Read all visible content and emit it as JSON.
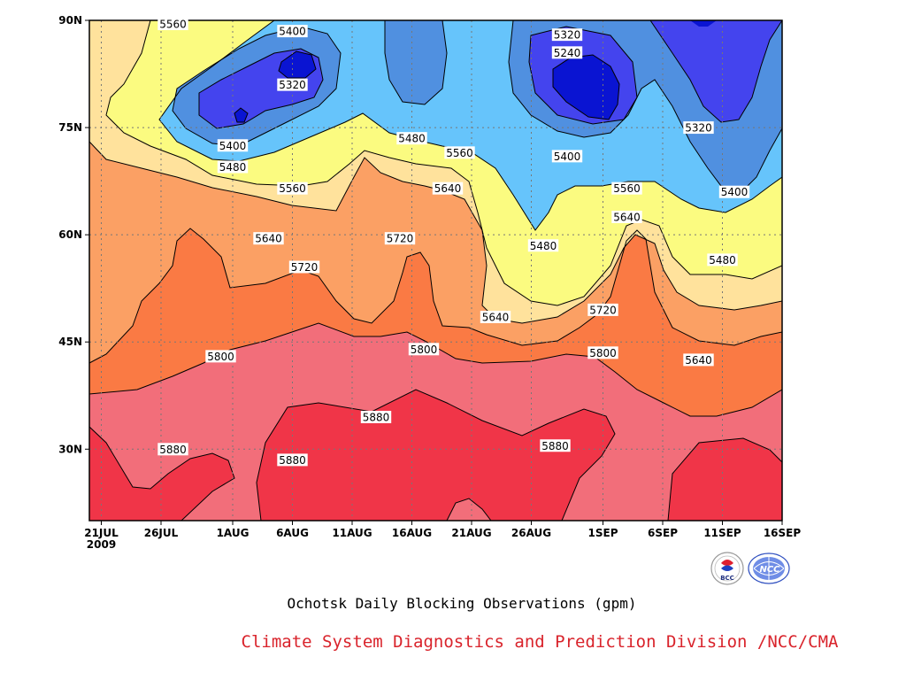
{
  "chart_data": {
    "type": "heatmap",
    "title": "Ochotsk Daily Blocking Observations (gpm)",
    "credit": "Climate System Diagnostics and Prediction Division /NCC/CMA",
    "x_ticks": [
      {
        "label": "21JUL",
        "sublabel": "2009",
        "date": "2009-07-21"
      },
      {
        "label": "26JUL",
        "date": "2009-07-26"
      },
      {
        "label": "1AUG",
        "date": "2009-08-01"
      },
      {
        "label": "6AUG",
        "date": "2009-08-06"
      },
      {
        "label": "11AUG",
        "date": "2009-08-11"
      },
      {
        "label": "16AUG",
        "date": "2009-08-16"
      },
      {
        "label": "21AUG",
        "date": "2009-08-21"
      },
      {
        "label": "26AUG",
        "date": "2009-08-26"
      },
      {
        "label": "1SEP",
        "date": "2009-09-01"
      },
      {
        "label": "6SEP",
        "date": "2009-09-06"
      },
      {
        "label": "11SEP",
        "date": "2009-09-11"
      },
      {
        "label": "16SEP",
        "date": "2009-09-16"
      }
    ],
    "y_ticks": [
      "90N",
      "75N",
      "60N",
      "45N",
      "30N"
    ],
    "xlim": [
      "2009-07-20",
      "2009-09-16"
    ],
    "ylim": [
      20,
      90
    ],
    "grid": true,
    "contour_levels": [
      5240,
      5320,
      5400,
      5480,
      5560,
      5640,
      5720,
      5800,
      5880
    ],
    "level_colors": {
      "5240": "#0a14d2",
      "5320": "#4444ee",
      "5400": "#5090e0",
      "5480": "#66c4fb",
      "5560": "#fbfb80",
      "5640": "#ffe29c",
      "5720": "#fba064",
      "5800": "#fa7a44",
      "5880": "#f26e7a",
      "above": "#f03548"
    },
    "contour_labels": [
      {
        "value": "5560",
        "date": "2009-07-27",
        "lat": 89.5
      },
      {
        "value": "5400",
        "date": "2009-08-06",
        "lat": 88.5
      },
      {
        "value": "5320",
        "date": "2009-08-06",
        "lat": 81.0
      },
      {
        "value": "5400",
        "date": "2009-08-01",
        "lat": 72.5
      },
      {
        "value": "5480",
        "date": "2009-08-01",
        "lat": 69.5
      },
      {
        "value": "5560",
        "date": "2009-08-06",
        "lat": 66.5
      },
      {
        "value": "5640",
        "date": "2009-08-04",
        "lat": 59.5
      },
      {
        "value": "5720",
        "date": "2009-08-07",
        "lat": 55.5
      },
      {
        "value": "5720",
        "date": "2009-08-15",
        "lat": 59.5
      },
      {
        "value": "5480",
        "date": "2009-08-16",
        "lat": 73.5
      },
      {
        "value": "5560",
        "date": "2009-08-20",
        "lat": 71.5
      },
      {
        "value": "5640",
        "date": "2009-08-19",
        "lat": 66.5
      },
      {
        "value": "5640",
        "date": "2009-08-23",
        "lat": 48.5
      },
      {
        "value": "5320",
        "date": "2009-08-29",
        "lat": 88.0
      },
      {
        "value": "5240",
        "date": "2009-08-29",
        "lat": 85.5
      },
      {
        "value": "5400",
        "date": "2009-08-29",
        "lat": 71.0
      },
      {
        "value": "5480",
        "date": "2009-08-27",
        "lat": 58.5
      },
      {
        "value": "5560",
        "date": "2009-09-03",
        "lat": 66.5
      },
      {
        "value": "5640",
        "date": "2009-09-03",
        "lat": 62.5
      },
      {
        "value": "5720",
        "date": "2009-09-01",
        "lat": 49.5
      },
      {
        "value": "5800",
        "date": "2009-09-01",
        "lat": 43.5
      },
      {
        "value": "5320",
        "date": "2009-09-09",
        "lat": 75.0
      },
      {
        "value": "5400",
        "date": "2009-09-12",
        "lat": 66.0
      },
      {
        "value": "5480",
        "date": "2009-09-11",
        "lat": 56.5
      },
      {
        "value": "5640",
        "date": "2009-09-09",
        "lat": 42.5
      },
      {
        "value": "5800",
        "date": "2009-07-31",
        "lat": 43.0
      },
      {
        "value": "5800",
        "date": "2009-08-17",
        "lat": 44.0
      },
      {
        "value": "5880",
        "date": "2009-07-27",
        "lat": 30.0
      },
      {
        "value": "5880",
        "date": "2009-08-06",
        "lat": 28.5
      },
      {
        "value": "5880",
        "date": "2009-08-13",
        "lat": 34.5
      },
      {
        "value": "5880",
        "date": "2009-08-28",
        "lat": 30.5
      }
    ]
  },
  "logos": {
    "bcc_text": "BCC",
    "ncc_text": "NCC"
  }
}
